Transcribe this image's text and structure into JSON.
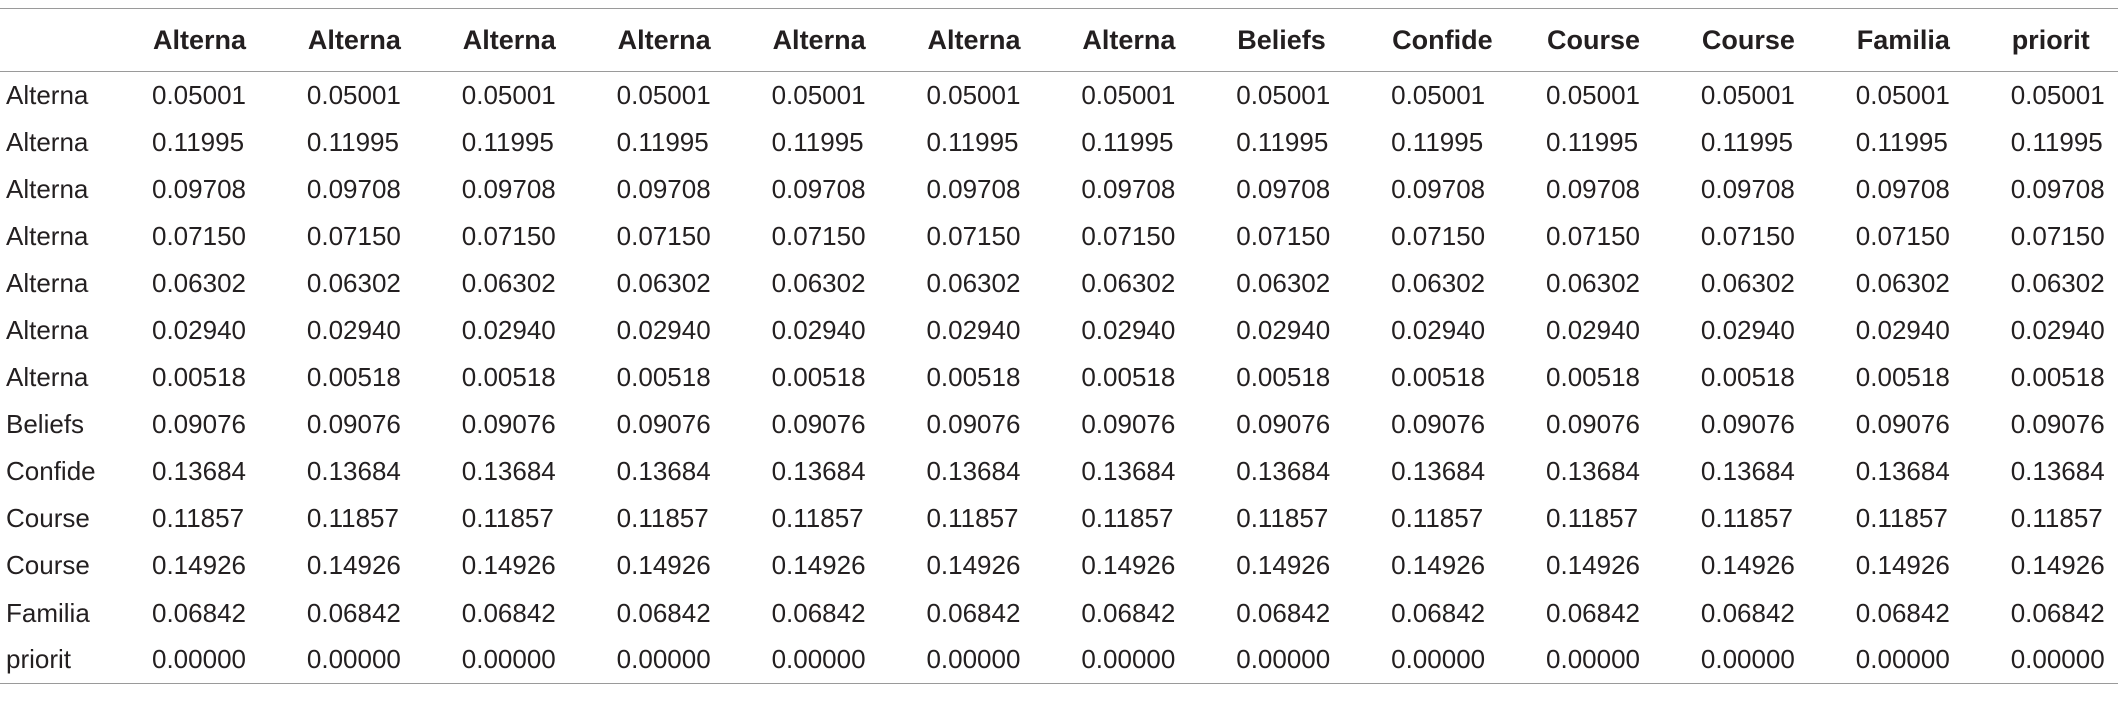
{
  "table": {
    "columns": [
      "",
      "Alterna",
      "Alterna",
      "Alterna",
      "Alterna",
      "Alterna",
      "Alterna",
      "Alterna",
      "Beliefs",
      "Confide",
      "Course",
      "Course",
      "Familia",
      "priorit"
    ],
    "rows": [
      {
        "label": "Alterna",
        "values": [
          "0.05001",
          "0.05001",
          "0.05001",
          "0.05001",
          "0.05001",
          "0.05001",
          "0.05001",
          "0.05001",
          "0.05001",
          "0.05001",
          "0.05001",
          "0.05001",
          "0.05001"
        ]
      },
      {
        "label": "Alterna",
        "values": [
          "0.11995",
          "0.11995",
          "0.11995",
          "0.11995",
          "0.11995",
          "0.11995",
          "0.11995",
          "0.11995",
          "0.11995",
          "0.11995",
          "0.11995",
          "0.11995",
          "0.11995"
        ]
      },
      {
        "label": "Alterna",
        "values": [
          "0.09708",
          "0.09708",
          "0.09708",
          "0.09708",
          "0.09708",
          "0.09708",
          "0.09708",
          "0.09708",
          "0.09708",
          "0.09708",
          "0.09708",
          "0.09708",
          "0.09708"
        ]
      },
      {
        "label": "Alterna",
        "values": [
          "0.07150",
          "0.07150",
          "0.07150",
          "0.07150",
          "0.07150",
          "0.07150",
          "0.07150",
          "0.07150",
          "0.07150",
          "0.07150",
          "0.07150",
          "0.07150",
          "0.07150"
        ]
      },
      {
        "label": "Alterna",
        "values": [
          "0.06302",
          "0.06302",
          "0.06302",
          "0.06302",
          "0.06302",
          "0.06302",
          "0.06302",
          "0.06302",
          "0.06302",
          "0.06302",
          "0.06302",
          "0.06302",
          "0.06302"
        ]
      },
      {
        "label": "Alterna",
        "values": [
          "0.02940",
          "0.02940",
          "0.02940",
          "0.02940",
          "0.02940",
          "0.02940",
          "0.02940",
          "0.02940",
          "0.02940",
          "0.02940",
          "0.02940",
          "0.02940",
          "0.02940"
        ]
      },
      {
        "label": "Alterna",
        "values": [
          "0.00518",
          "0.00518",
          "0.00518",
          "0.00518",
          "0.00518",
          "0.00518",
          "0.00518",
          "0.00518",
          "0.00518",
          "0.00518",
          "0.00518",
          "0.00518",
          "0.00518"
        ]
      },
      {
        "label": "Beliefs",
        "values": [
          "0.09076",
          "0.09076",
          "0.09076",
          "0.09076",
          "0.09076",
          "0.09076",
          "0.09076",
          "0.09076",
          "0.09076",
          "0.09076",
          "0.09076",
          "0.09076",
          "0.09076"
        ]
      },
      {
        "label": "Confide",
        "values": [
          "0.13684",
          "0.13684",
          "0.13684",
          "0.13684",
          "0.13684",
          "0.13684",
          "0.13684",
          "0.13684",
          "0.13684",
          "0.13684",
          "0.13684",
          "0.13684",
          "0.13684"
        ]
      },
      {
        "label": "Course",
        "values": [
          "0.11857",
          "0.11857",
          "0.11857",
          "0.11857",
          "0.11857",
          "0.11857",
          "0.11857",
          "0.11857",
          "0.11857",
          "0.11857",
          "0.11857",
          "0.11857",
          "0.11857"
        ]
      },
      {
        "label": "Course",
        "values": [
          "0.14926",
          "0.14926",
          "0.14926",
          "0.14926",
          "0.14926",
          "0.14926",
          "0.14926",
          "0.14926",
          "0.14926",
          "0.14926",
          "0.14926",
          "0.14926",
          "0.14926"
        ]
      },
      {
        "label": "Familia",
        "values": [
          "0.06842",
          "0.06842",
          "0.06842",
          "0.06842",
          "0.06842",
          "0.06842",
          "0.06842",
          "0.06842",
          "0.06842",
          "0.06842",
          "0.06842",
          "0.06842",
          "0.06842"
        ]
      },
      {
        "label": "priorit",
        "values": [
          "0.00000",
          "0.00000",
          "0.00000",
          "0.00000",
          "0.00000",
          "0.00000",
          "0.00000",
          "0.00000",
          "0.00000",
          "0.00000",
          "0.00000",
          "0.00000",
          "0.00000"
        ]
      }
    ]
  }
}
